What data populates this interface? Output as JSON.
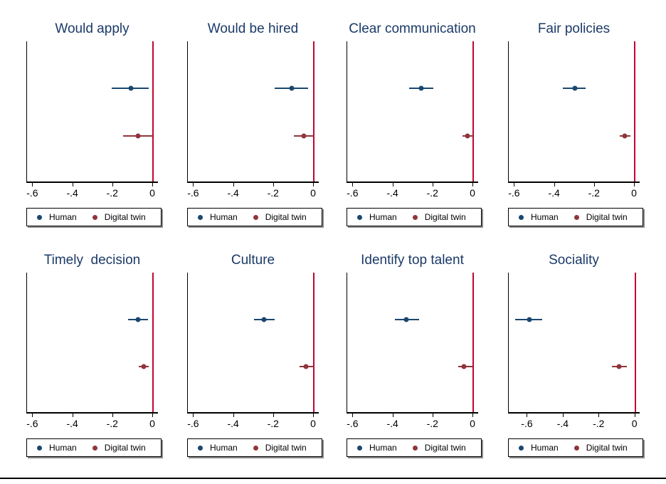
{
  "figure": {
    "description": "Eight-panel coefficient plot comparing Human and Digital twin estimates",
    "rows": 2,
    "cols": 4
  },
  "colors": {
    "human": "#1A476F",
    "digital_twin": "#90353B",
    "zero_line": "#C10534",
    "title_text": "#1B3A68",
    "axis": "#000000"
  },
  "legend": {
    "items": [
      {
        "name": "human",
        "label": "Human",
        "color": "#1A476F"
      },
      {
        "name": "digital_twin",
        "label": "Digital twin",
        "color": "#90353B"
      }
    ]
  },
  "chart_data": [
    {
      "type": "scatter",
      "title": "Would apply",
      "xlim": [
        -0.63,
        0.025
      ],
      "xticks": [
        -0.6,
        -0.4,
        -0.2,
        0
      ],
      "xtick_labels": [
        "-.6",
        "-.4",
        "-.2",
        "0"
      ],
      "ref_line_x": 0,
      "series": [
        {
          "name": "Human",
          "estimate": -0.11,
          "ci": [
            -0.205,
            -0.02
          ]
        },
        {
          "name": "Digital twin",
          "estimate": -0.075,
          "ci": [
            -0.15,
            0.0
          ]
        }
      ]
    },
    {
      "type": "scatter",
      "title": "Would be hired",
      "xlim": [
        -0.63,
        0.025
      ],
      "xticks": [
        -0.6,
        -0.4,
        -0.2,
        0
      ],
      "xtick_labels": [
        "-.6",
        "-.4",
        "-.2",
        "0"
      ],
      "ref_line_x": 0,
      "series": [
        {
          "name": "Human",
          "estimate": -0.11,
          "ci": [
            -0.195,
            -0.03
          ]
        },
        {
          "name": "Digital twin",
          "estimate": -0.05,
          "ci": [
            -0.1,
            0.0
          ]
        }
      ]
    },
    {
      "type": "scatter",
      "title": "Clear communication",
      "xlim": [
        -0.63,
        0.025
      ],
      "xticks": [
        -0.6,
        -0.4,
        -0.2,
        0
      ],
      "xtick_labels": [
        "-.6",
        "-.4",
        "-.2",
        "0"
      ],
      "ref_line_x": 0,
      "series": [
        {
          "name": "Human",
          "estimate": -0.26,
          "ci": [
            -0.32,
            -0.2
          ]
        },
        {
          "name": "Digital twin",
          "estimate": -0.03,
          "ci": [
            -0.055,
            0.0
          ]
        }
      ]
    },
    {
      "type": "scatter",
      "title": "Fair policies",
      "xlim": [
        -0.63,
        0.025
      ],
      "xticks": [
        -0.6,
        -0.4,
        -0.2,
        0
      ],
      "xtick_labels": [
        "-.6",
        "-.4",
        "-.2",
        "0"
      ],
      "ref_line_x": 0,
      "series": [
        {
          "name": "Human",
          "estimate": -0.3,
          "ci": [
            -0.36,
            -0.245
          ]
        },
        {
          "name": "Digital twin",
          "estimate": -0.05,
          "ci": [
            -0.075,
            -0.02
          ]
        }
      ]
    },
    {
      "type": "scatter",
      "title": "Timely  decision",
      "xlim": [
        -0.63,
        0.025
      ],
      "xticks": [
        -0.6,
        -0.4,
        -0.2,
        0
      ],
      "xtick_labels": [
        "-.6",
        "-.4",
        "-.2",
        "0"
      ],
      "ref_line_x": 0,
      "series": [
        {
          "name": "Human",
          "estimate": -0.075,
          "ci": [
            -0.125,
            -0.025
          ]
        },
        {
          "name": "Digital twin",
          "estimate": -0.045,
          "ci": [
            -0.07,
            -0.02
          ]
        }
      ]
    },
    {
      "type": "scatter",
      "title": "Culture",
      "xlim": [
        -0.63,
        0.025
      ],
      "xticks": [
        -0.6,
        -0.4,
        -0.2,
        0
      ],
      "xtick_labels": [
        "-.6",
        "-.4",
        "-.2",
        "0"
      ],
      "ref_line_x": 0,
      "series": [
        {
          "name": "Human",
          "estimate": -0.25,
          "ci": [
            -0.3,
            -0.195
          ]
        },
        {
          "name": "Digital twin",
          "estimate": -0.04,
          "ci": [
            -0.07,
            0.0
          ]
        }
      ]
    },
    {
      "type": "scatter",
      "title": "Identify top talent",
      "xlim": [
        -0.63,
        0.025
      ],
      "xticks": [
        -0.6,
        -0.4,
        -0.2,
        0
      ],
      "xtick_labels": [
        "-.6",
        "-.4",
        "-.2",
        "0"
      ],
      "ref_line_x": 0,
      "series": [
        {
          "name": "Human",
          "estimate": -0.335,
          "ci": [
            -0.39,
            -0.27
          ]
        },
        {
          "name": "Digital twin",
          "estimate": -0.045,
          "ci": [
            -0.075,
            -0.005
          ]
        }
      ]
    },
    {
      "type": "scatter",
      "title": "Sociality",
      "xlim": [
        -0.705,
        0.025
      ],
      "xticks": [
        -0.6,
        -0.4,
        -0.2,
        0
      ],
      "xtick_labels": [
        "-.6",
        "-.4",
        "-.2",
        "0"
      ],
      "ref_line_x": 0,
      "series": [
        {
          "name": "Human",
          "estimate": -0.59,
          "ci": [
            -0.67,
            -0.52
          ]
        },
        {
          "name": "Digital twin",
          "estimate": -0.09,
          "ci": [
            -0.13,
            -0.045
          ]
        }
      ]
    }
  ]
}
